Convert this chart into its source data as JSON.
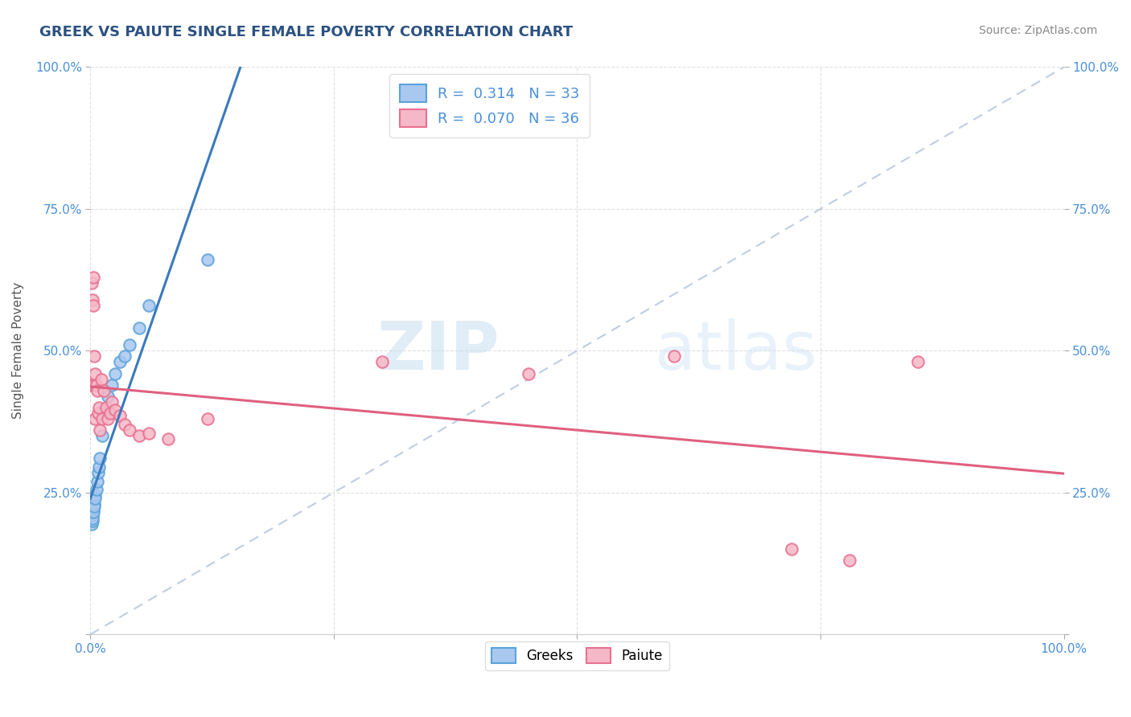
{
  "title": "GREEK VS PAIUTE SINGLE FEMALE POVERTY CORRELATION CHART",
  "source": "Source: ZipAtlas.com",
  "ylabel": "Single Female Poverty",
  "xlim": [
    0,
    1.0
  ],
  "ylim": [
    0,
    1.0
  ],
  "greek_color": "#a8c8f0",
  "greek_edge": "#5ba3d9",
  "paiute_color": "#f5b8c8",
  "paiute_edge": "#e87090",
  "trend_greek_color": "#3a7abd",
  "trend_paiute_color": "#e06080",
  "diagonal_color": "#b8c8e0",
  "R_greek": 0.314,
  "N_greek": 33,
  "R_paiute": 0.07,
  "N_paiute": 36,
  "legend_label_greek": "Greeks",
  "legend_label_paiute": "Paiute",
  "watermark": "ZIPatlas",
  "background_color": "#ffffff",
  "grid_color": "#d8d8d8",
  "title_color": "#2c5282",
  "tick_color": "#4a90d9",
  "ylabel_color": "#555555",
  "source_color": "#888888",
  "greek_x": [
    0.001,
    0.001,
    0.001,
    0.001,
    0.001,
    0.002,
    0.002,
    0.002,
    0.002,
    0.002,
    0.003,
    0.003,
    0.003,
    0.004,
    0.004,
    0.005,
    0.005,
    0.006,
    0.007,
    0.008,
    0.009,
    0.01,
    0.012,
    0.015,
    0.018,
    0.022,
    0.025,
    0.03,
    0.035,
    0.04,
    0.05,
    0.06,
    0.12
  ],
  "greek_y": [
    0.2,
    0.205,
    0.21,
    0.195,
    0.215,
    0.2,
    0.21,
    0.215,
    0.22,
    0.205,
    0.225,
    0.22,
    0.215,
    0.23,
    0.225,
    0.245,
    0.24,
    0.255,
    0.27,
    0.285,
    0.295,
    0.31,
    0.35,
    0.39,
    0.42,
    0.44,
    0.46,
    0.48,
    0.49,
    0.51,
    0.54,
    0.58,
    0.66
  ],
  "paiute_x": [
    0.001,
    0.001,
    0.002,
    0.002,
    0.003,
    0.003,
    0.004,
    0.004,
    0.005,
    0.005,
    0.006,
    0.007,
    0.008,
    0.009,
    0.01,
    0.011,
    0.012,
    0.014,
    0.016,
    0.018,
    0.02,
    0.022,
    0.025,
    0.03,
    0.035,
    0.04,
    0.05,
    0.06,
    0.08,
    0.12,
    0.3,
    0.45,
    0.6,
    0.72,
    0.78,
    0.85
  ],
  "paiute_y": [
    0.44,
    0.62,
    0.59,
    0.44,
    0.63,
    0.58,
    0.49,
    0.44,
    0.46,
    0.38,
    0.44,
    0.43,
    0.39,
    0.4,
    0.36,
    0.45,
    0.38,
    0.43,
    0.4,
    0.38,
    0.39,
    0.41,
    0.395,
    0.385,
    0.37,
    0.36,
    0.35,
    0.355,
    0.345,
    0.38,
    0.48,
    0.46,
    0.49,
    0.15,
    0.13,
    0.48
  ]
}
